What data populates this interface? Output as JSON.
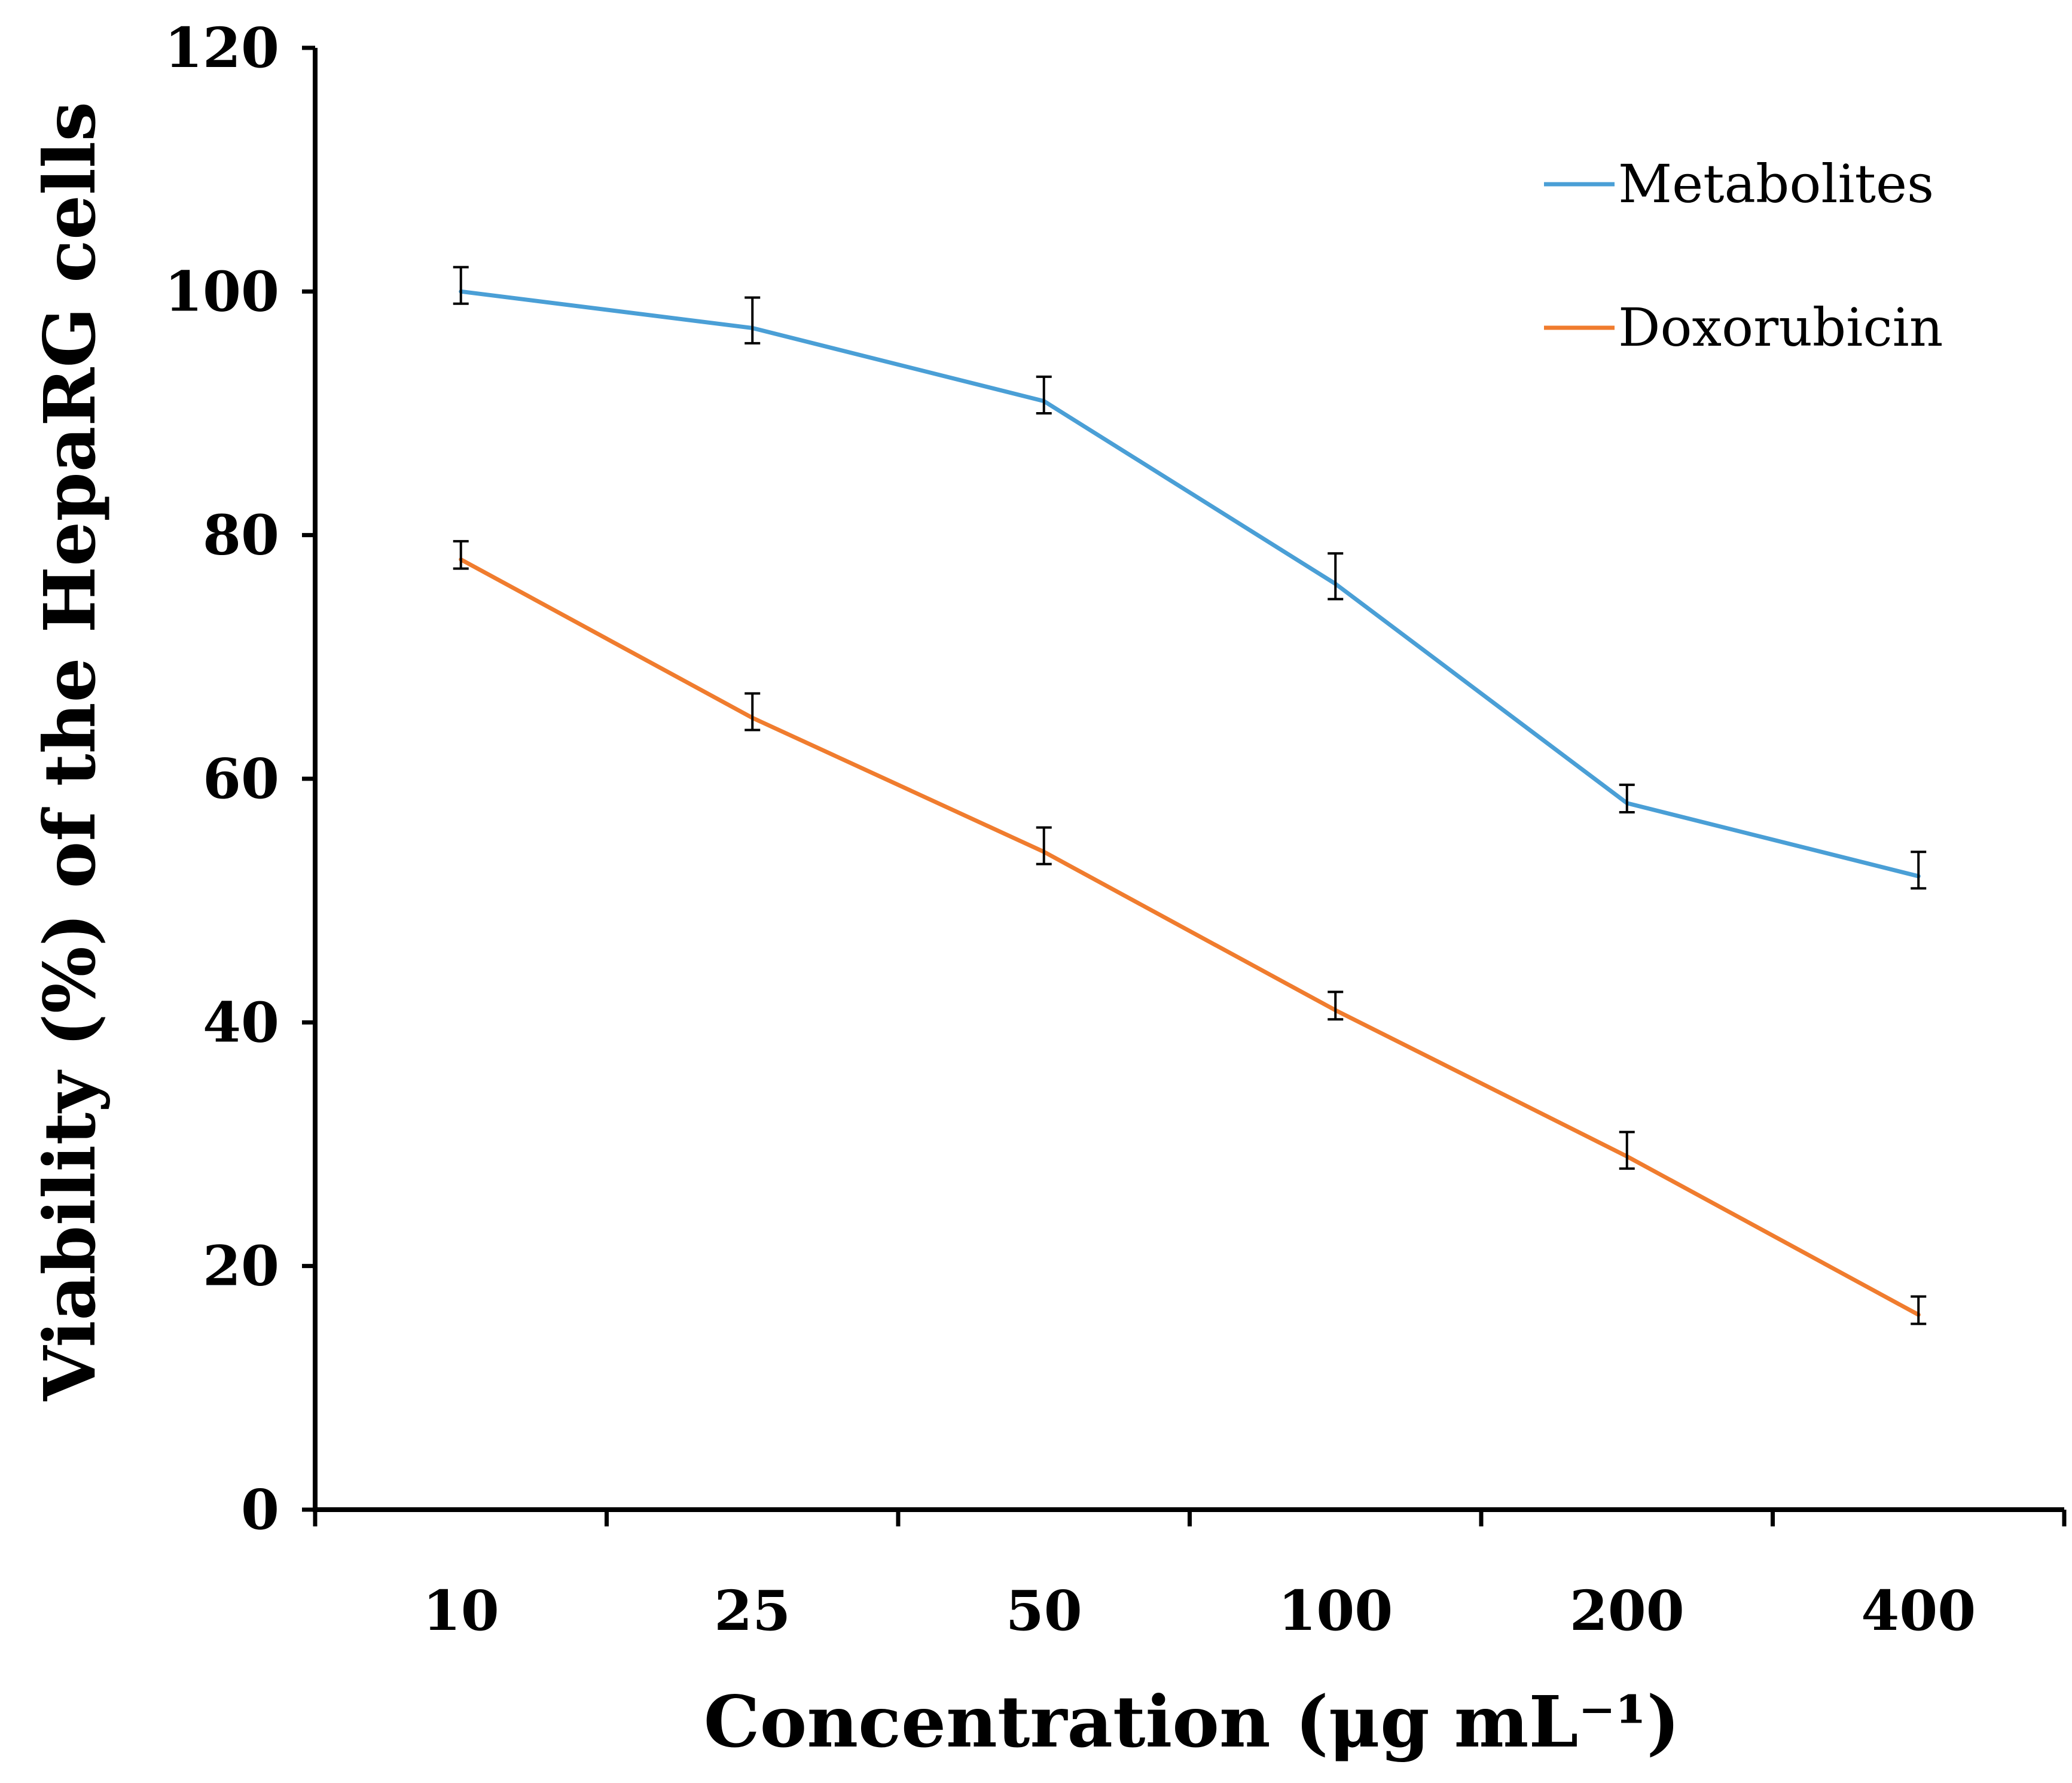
{
  "chart_data": {
    "type": "line",
    "title": "",
    "xlabel": "Concentration (μg mL⁻¹)",
    "ylabel": "Viability (%) of the HepaRG cells",
    "categories": [
      "10",
      "25",
      "50",
      "100",
      "200",
      "400"
    ],
    "ylim": [
      0,
      120
    ],
    "yticks": [
      "0",
      "20",
      "40",
      "60",
      "80",
      "100",
      "120"
    ],
    "grid": false,
    "legend_position": "top-right",
    "series": [
      {
        "name": "Metabolites",
        "color": "#4a9fd6",
        "values": [
          100,
          97,
          91,
          76,
          58,
          52
        ],
        "errors": [
          2,
          2.5,
          2,
          2.5,
          1.5,
          2
        ]
      },
      {
        "name": "Doxorubicin",
        "color": "#f07c2e",
        "values": [
          78,
          65,
          54,
          41,
          29,
          16
        ],
        "errors": [
          1.5,
          2,
          2,
          1.5,
          2,
          1.5
        ]
      }
    ]
  }
}
